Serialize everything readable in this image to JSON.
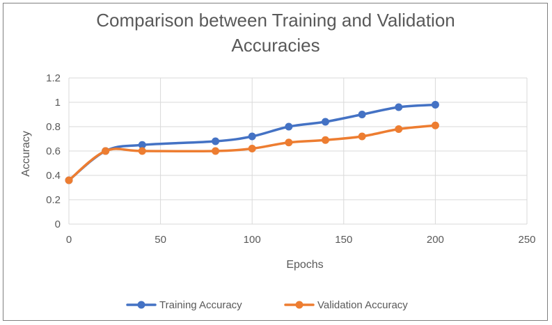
{
  "chart_data": {
    "type": "line",
    "title": "Comparison between Training and Validation Accuracies",
    "title_lines": [
      "Comparison between Training and Validation",
      "Accuracies"
    ],
    "xlabel": "Epochs",
    "ylabel": "Accuracy",
    "xlim": [
      0,
      250
    ],
    "ylim": [
      0,
      1.2
    ],
    "xticks": [
      0,
      50,
      100,
      150,
      200,
      250
    ],
    "xtick_labels": [
      "0",
      "50",
      "100",
      "150",
      "200",
      "250"
    ],
    "yticks": [
      0,
      0.2,
      0.4,
      0.6,
      0.8,
      1,
      1.2
    ],
    "ytick_labels": [
      "0",
      "0.2",
      "0.4",
      "0.6",
      "0.8",
      "1",
      "1.2"
    ],
    "grid": true,
    "legend_position": "bottom",
    "series": [
      {
        "name": "Training Accuracy",
        "color": "#4472c4",
        "x": [
          0,
          20,
          40,
          80,
          100,
          120,
          140,
          160,
          180,
          200
        ],
        "y": [
          0.36,
          0.6,
          0.65,
          0.68,
          0.72,
          0.8,
          0.84,
          0.9,
          0.96,
          0.98
        ]
      },
      {
        "name": "Validation Accuracy",
        "color": "#ed7d31",
        "x": [
          0,
          20,
          40,
          80,
          100,
          120,
          140,
          160,
          180,
          200
        ],
        "y": [
          0.36,
          0.6,
          0.6,
          0.6,
          0.62,
          0.67,
          0.69,
          0.72,
          0.78,
          0.81
        ]
      }
    ]
  }
}
